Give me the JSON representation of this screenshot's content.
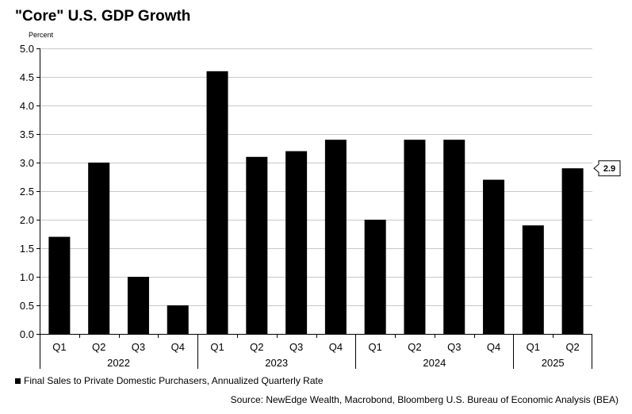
{
  "title": "\"Core\" U.S. GDP Growth",
  "y_unit": "Percent",
  "legend_label": "Final Sales to Private Domestic Purchasers, Annualized Quarterly Rate",
  "source": "Source: NewEdge Wealth, Macrobond, Bloomberg U.S. Bureau of Economic Analysis (BEA)",
  "chart_data": {
    "type": "bar",
    "title": "\"Core\" U.S. GDP Growth",
    "ylabel": "Percent",
    "xlabel": "",
    "ylim": [
      0,
      5
    ],
    "yticks": [
      "0.0",
      "0.5",
      "1.0",
      "1.5",
      "2.0",
      "2.5",
      "3.0",
      "3.5",
      "4.0",
      "4.5",
      "5.0"
    ],
    "grid": true,
    "categories": [
      "Q1",
      "Q2",
      "Q3",
      "Q4",
      "Q1",
      "Q2",
      "Q3",
      "Q4",
      "Q1",
      "Q2",
      "Q3",
      "Q4",
      "Q1",
      "Q2"
    ],
    "years": [
      "2022",
      "2023",
      "2024",
      "2025"
    ],
    "year_groups": [
      4,
      4,
      4,
      2
    ],
    "series": [
      {
        "name": "Final Sales to Private Domestic Purchasers, Annualized Quarterly Rate",
        "color": "#000000",
        "values": [
          1.7,
          3.0,
          1.0,
          0.5,
          4.6,
          3.1,
          3.2,
          3.4,
          2.0,
          3.4,
          3.4,
          2.7,
          1.9,
          2.9
        ]
      }
    ],
    "last_value_label": "2.9"
  }
}
